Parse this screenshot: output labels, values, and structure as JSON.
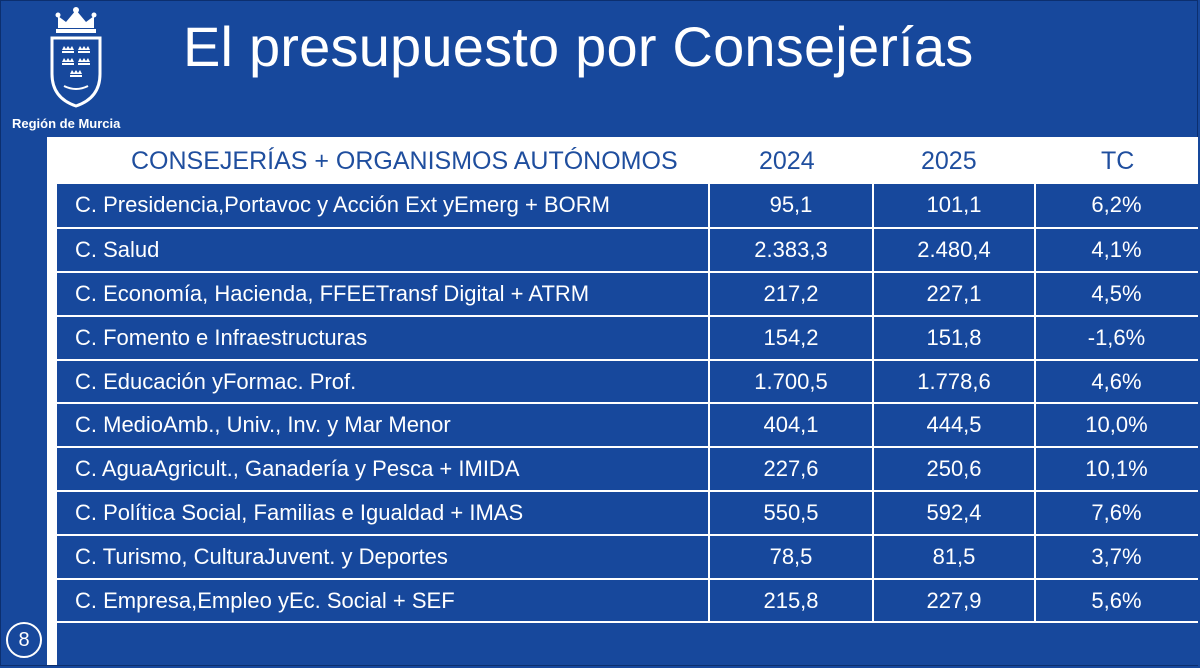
{
  "header": {
    "region_name": "Región de Murcia",
    "title": "El presupuesto por Consejerías"
  },
  "table": {
    "columns": [
      "CONSEJERÍAS + ORGANISMOS AUTÓNOMOS",
      "2024",
      "2025",
      "TC"
    ],
    "rows": [
      {
        "name": "C. Presidencia,Portavoc y Acción Ext yEmerg + BORM",
        "y2024": "95,1",
        "y2025": "101,1",
        "tc": "6,2%"
      },
      {
        "name": "C. Salud",
        "y2024": "2.383,3",
        "y2025": "2.480,4",
        "tc": "4,1%"
      },
      {
        "name": "C. Economía, Hacienda, FFEETransf Digital + ATRM",
        "y2024": "217,2",
        "y2025": "227,1",
        "tc": "4,5%"
      },
      {
        "name": "C. Fomento e Infraestructuras",
        "y2024": "154,2",
        "y2025": "151,8",
        "tc": "-1,6%"
      },
      {
        "name": "C. Educación yFormac. Prof.",
        "y2024": "1.700,5",
        "y2025": "1.778,6",
        "tc": "4,6%"
      },
      {
        "name": "C. MedioAmb., Univ., Inv. y Mar Menor",
        "y2024": "404,1",
        "y2025": "444,5",
        "tc": "10,0%"
      },
      {
        "name": "C. AguaAgricult., Ganadería y Pesca + IMIDA",
        "y2024": "227,6",
        "y2025": "250,6",
        "tc": "10,1%"
      },
      {
        "name": "C. Política Social, Familias e Igualdad + IMAS",
        "y2024": "550,5",
        "y2025": "592,4",
        "tc": "7,6%"
      },
      {
        "name": "C. Turismo, CulturaJuvent. y Deportes",
        "y2024": "78,5",
        "y2025": "81,5",
        "tc": "3,7%"
      },
      {
        "name": "C. Empresa,Empleo yEc. Social + SEF",
        "y2024": "215,8",
        "y2025": "227,9",
        "tc": "5,6%"
      }
    ]
  },
  "footer": {
    "page_number": "8"
  },
  "colors": {
    "background": "#17489c",
    "header_text": "#1f4e9e",
    "text": "#ffffff"
  }
}
